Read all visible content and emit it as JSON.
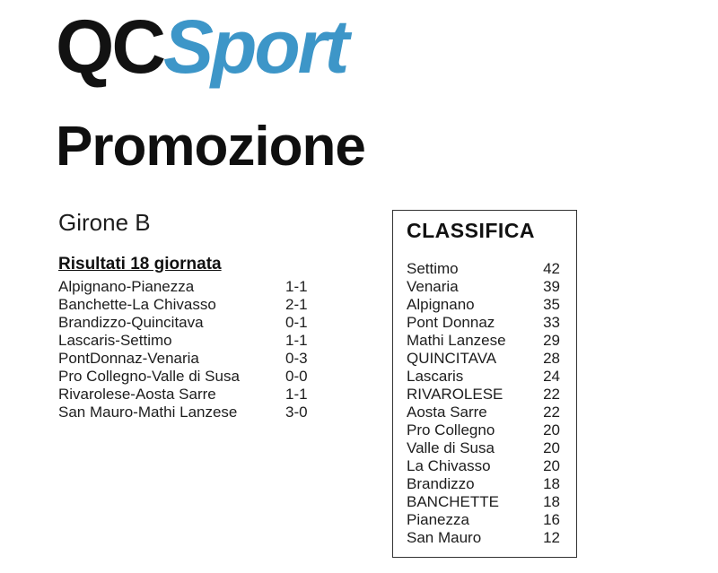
{
  "logo": {
    "qc": "QC",
    "sport": "Sport",
    "qc_color": "#121212",
    "sport_color": "#3d96c8"
  },
  "page_title": "Promozione",
  "girone": "Girone B",
  "results_title": "Risultati 18 giornata",
  "results": [
    {
      "match": "Alpignano-Pianezza",
      "score": "1-1"
    },
    {
      "match": "Banchette-La Chivasso",
      "score": "2-1"
    },
    {
      "match": "Brandizzo-Quincitava",
      "score": "0-1"
    },
    {
      "match": "Lascaris-Settimo",
      "score": "1-1"
    },
    {
      "match": "PontDonnaz-Venaria",
      "score": "0-3"
    },
    {
      "match": "Pro Collegno-Valle di Susa",
      "score": "0-0"
    },
    {
      "match": "Rivarolese-Aosta Sarre",
      "score": "1-1"
    },
    {
      "match": "San Mauro-Mathi Lanzese",
      "score": "3-0"
    }
  ],
  "classifica": {
    "title": "CLASSIFICA",
    "rows": [
      {
        "team": "Settimo",
        "points": "42"
      },
      {
        "team": "Venaria",
        "points": "39"
      },
      {
        "team": "Alpignano",
        "points": "35"
      },
      {
        "team": "Pont Donnaz",
        "points": "33"
      },
      {
        "team": "Mathi Lanzese",
        "points": "29"
      },
      {
        "team": "QUINCITAVA",
        "points": "28"
      },
      {
        "team": "Lascaris",
        "points": "24"
      },
      {
        "team": "RIVAROLESE",
        "points": "22"
      },
      {
        "team": "Aosta Sarre",
        "points": "22"
      },
      {
        "team": "Pro Collegno",
        "points": "20"
      },
      {
        "team": "Valle di Susa",
        "points": "20"
      },
      {
        "team": "La Chivasso",
        "points": "20"
      },
      {
        "team": "Brandizzo",
        "points": "18"
      },
      {
        "team": "BANCHETTE",
        "points": "18"
      },
      {
        "team": "Pianezza",
        "points": "16"
      },
      {
        "team": "San Mauro",
        "points": "12"
      }
    ]
  }
}
